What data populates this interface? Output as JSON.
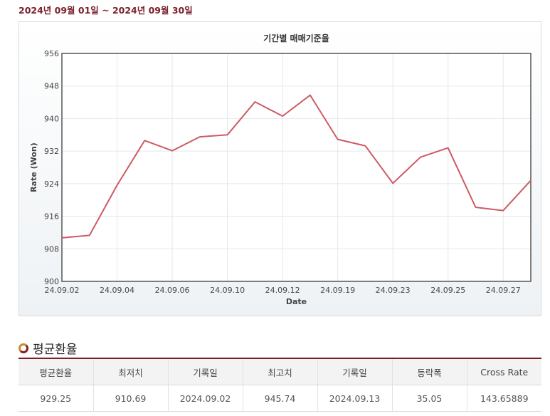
{
  "period": {
    "label": "2024년 09월 01일 ~ 2024년 09월 30일"
  },
  "chart_data": {
    "type": "line",
    "title": "기간별 매매기준율",
    "xlabel": "Date",
    "ylabel": "Rate (Won)",
    "ylim": [
      900,
      956
    ],
    "yticks": [
      900,
      908,
      916,
      924,
      932,
      940,
      948,
      956
    ],
    "x": [
      "24.09.02",
      "24.09.03",
      "24.09.04",
      "24.09.05",
      "24.09.06",
      "24.09.09",
      "24.09.10",
      "24.09.11",
      "24.09.12",
      "24.09.13",
      "24.09.19",
      "24.09.20",
      "24.09.23",
      "24.09.24",
      "24.09.25",
      "24.09.26",
      "24.09.27",
      "24.09.30"
    ],
    "xtick_labels": [
      "24.09.02",
      "24.09.04",
      "24.09.06",
      "24.09.10",
      "24.09.12",
      "24.09.19",
      "24.09.23",
      "24.09.25",
      "24.09.27"
    ],
    "series": [
      {
        "values": [
          910.7,
          911.3,
          923.6,
          934.6,
          932.1,
          935.5,
          936.0,
          944.1,
          940.6,
          945.74,
          934.9,
          933.3,
          924.1,
          930.5,
          932.8,
          918.2,
          917.4,
          924.8
        ]
      }
    ],
    "line_color": "#cd5a65",
    "grid": true
  },
  "summary": {
    "title": "평균환율",
    "headers": [
      "평균환율",
      "최저치",
      "기록일",
      "최고치",
      "기록일",
      "등락폭",
      "Cross Rate"
    ],
    "row": [
      "929.25",
      "910.69",
      "2024.09.02",
      "945.74",
      "2024.09.13",
      "35.05",
      "143.65889"
    ]
  }
}
